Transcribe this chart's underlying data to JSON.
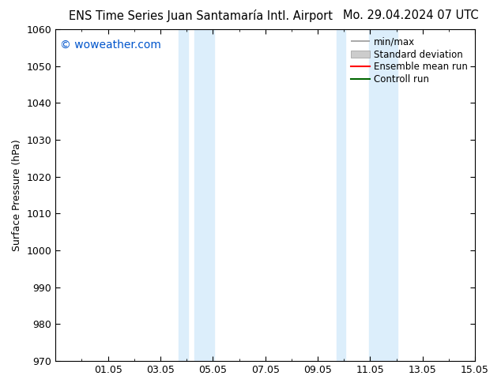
{
  "title_left": "ENS Time Series Juan Santamaría Intl. Airport",
  "title_right": "Mo. 29.04.2024 07 UTC",
  "ylabel": "Surface Pressure (hPa)",
  "watermark": "© woweather.com",
  "watermark_color": "#0055cc",
  "ylim": [
    970,
    1060
  ],
  "yticks": [
    970,
    980,
    990,
    1000,
    1010,
    1020,
    1030,
    1040,
    1050,
    1060
  ],
  "xlim_days": [
    0,
    16
  ],
  "xtick_labels": [
    "01.05",
    "03.05",
    "05.05",
    "07.05",
    "09.05",
    "11.05",
    "13.05",
    "15.05"
  ],
  "xtick_positions_days": [
    2,
    4,
    6,
    8,
    10,
    12,
    14,
    16
  ],
  "shaded_bands": [
    {
      "start_day": 4.708,
      "end_day": 5.042
    },
    {
      "start_day": 5.292,
      "end_day": 6.042
    },
    {
      "start_day": 10.708,
      "end_day": 11.042
    },
    {
      "start_day": 11.958,
      "end_day": 13.042
    }
  ],
  "shaded_color": "#dceefb",
  "background_color": "#ffffff",
  "legend_entries": [
    {
      "label": "min/max",
      "color": "#999999",
      "style": "minmax"
    },
    {
      "label": "Standard deviation",
      "color": "#cccccc",
      "style": "stddev"
    },
    {
      "label": "Ensemble mean run",
      "color": "#ff0000",
      "style": "line"
    },
    {
      "label": "Controll run",
      "color": "#006600",
      "style": "line"
    }
  ],
  "title_fontsize": 10.5,
  "axis_fontsize": 9,
  "tick_fontsize": 9,
  "legend_fontsize": 8.5,
  "watermark_fontsize": 10
}
